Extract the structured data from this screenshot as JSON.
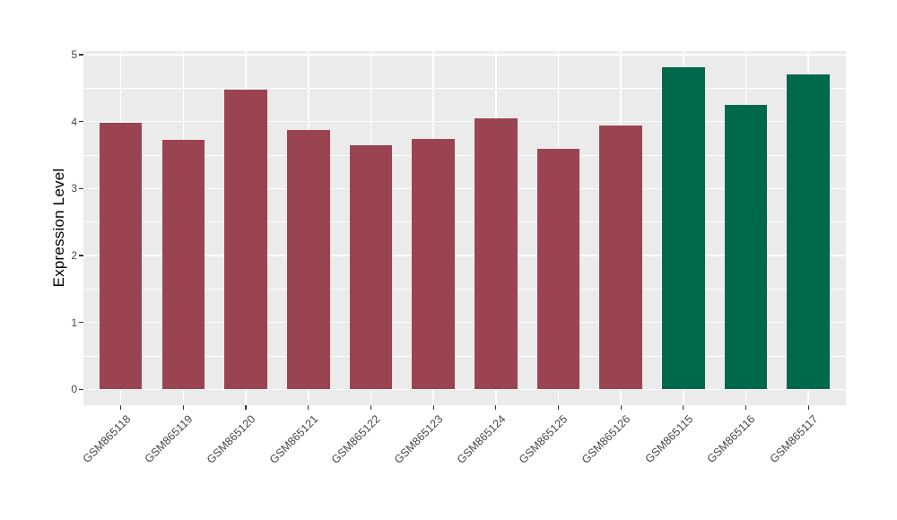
{
  "page": {
    "background": "#FFFFFF"
  },
  "chart_data": {
    "type": "bar",
    "title": "",
    "xlabel": "",
    "ylabel": "Expression Level",
    "ylim": [
      0,
      5
    ],
    "yticks": [
      0,
      1,
      2,
      3,
      4,
      5
    ],
    "yticks_minor": [
      0.5,
      1.5,
      2.5,
      3.5,
      4.5
    ],
    "legend": "none",
    "panel_background": "#EBEBEB",
    "gridline_color": "#FFFFFF",
    "axis_text_color": "#474747",
    "categories": [
      "GSM865118",
      "GSM865119",
      "GSM865120",
      "GSM865121",
      "GSM865122",
      "GSM865123",
      "GSM865124",
      "GSM865125",
      "GSM865126",
      "GSM865115",
      "GSM865116",
      "GSM865117"
    ],
    "values": [
      3.98,
      3.73,
      4.48,
      3.87,
      3.65,
      3.74,
      4.05,
      3.59,
      3.94,
      4.81,
      4.25,
      4.71
    ],
    "bar_colors": [
      "#9A4451",
      "#9A4451",
      "#9A4451",
      "#9A4451",
      "#9A4451",
      "#9A4451",
      "#9A4451",
      "#9A4451",
      "#9A4451",
      "#00694B",
      "#00694B",
      "#00694B"
    ],
    "color_groups": [
      {
        "color": "#9A4451",
        "samples": [
          "GSM865118",
          "GSM865119",
          "GSM865120",
          "GSM865121",
          "GSM865122",
          "GSM865123",
          "GSM865124",
          "GSM865125",
          "GSM865126"
        ]
      },
      {
        "color": "#00694B",
        "samples": [
          "GSM865115",
          "GSM865116",
          "GSM865117"
        ]
      }
    ]
  }
}
